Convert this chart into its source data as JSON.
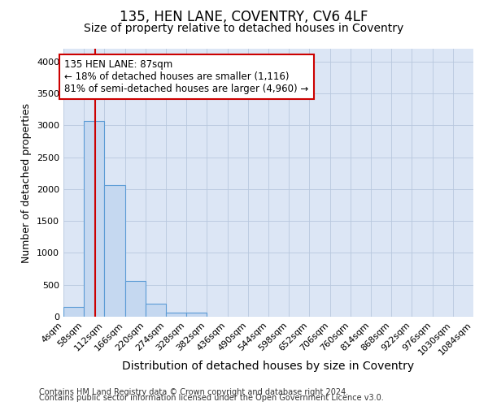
{
  "title1": "135, HEN LANE, COVENTRY, CV6 4LF",
  "title2": "Size of property relative to detached houses in Coventry",
  "xlabel": "Distribution of detached houses by size in Coventry",
  "ylabel": "Number of detached properties",
  "footnote1": "Contains HM Land Registry data © Crown copyright and database right 2024.",
  "footnote2": "Contains public sector information licensed under the Open Government Licence v3.0.",
  "bin_edges": [
    4,
    58,
    112,
    166,
    220,
    274,
    328,
    382,
    436,
    490,
    544,
    598,
    652,
    706,
    760,
    814,
    868,
    922,
    976,
    1030,
    1084
  ],
  "bar_heights": [
    150,
    3070,
    2060,
    560,
    210,
    70,
    60,
    0,
    0,
    0,
    0,
    0,
    0,
    0,
    0,
    0,
    0,
    0,
    0,
    0
  ],
  "bar_color": "#c5d8f0",
  "bar_edge_color": "#5b9bd5",
  "property_size": 87,
  "vline_color": "#cc0000",
  "annotation_line1": "135 HEN LANE: 87sqm",
  "annotation_line2": "← 18% of detached houses are smaller (1,116)",
  "annotation_line3": "81% of semi-detached houses are larger (4,960) →",
  "annotation_box_color": "#ffffff",
  "annotation_box_edge": "#cc0000",
  "ylim": [
    0,
    4200
  ],
  "yticks": [
    0,
    500,
    1000,
    1500,
    2000,
    2500,
    3000,
    3500,
    4000
  ],
  "ax_bg_color": "#dce6f5",
  "background_color": "#ffffff",
  "grid_color": "#b8c8de",
  "title1_fontsize": 12,
  "title2_fontsize": 10,
  "ylabel_fontsize": 9,
  "xlabel_fontsize": 10,
  "tick_fontsize": 8,
  "footnote_fontsize": 7,
  "annot_fontsize": 8.5
}
